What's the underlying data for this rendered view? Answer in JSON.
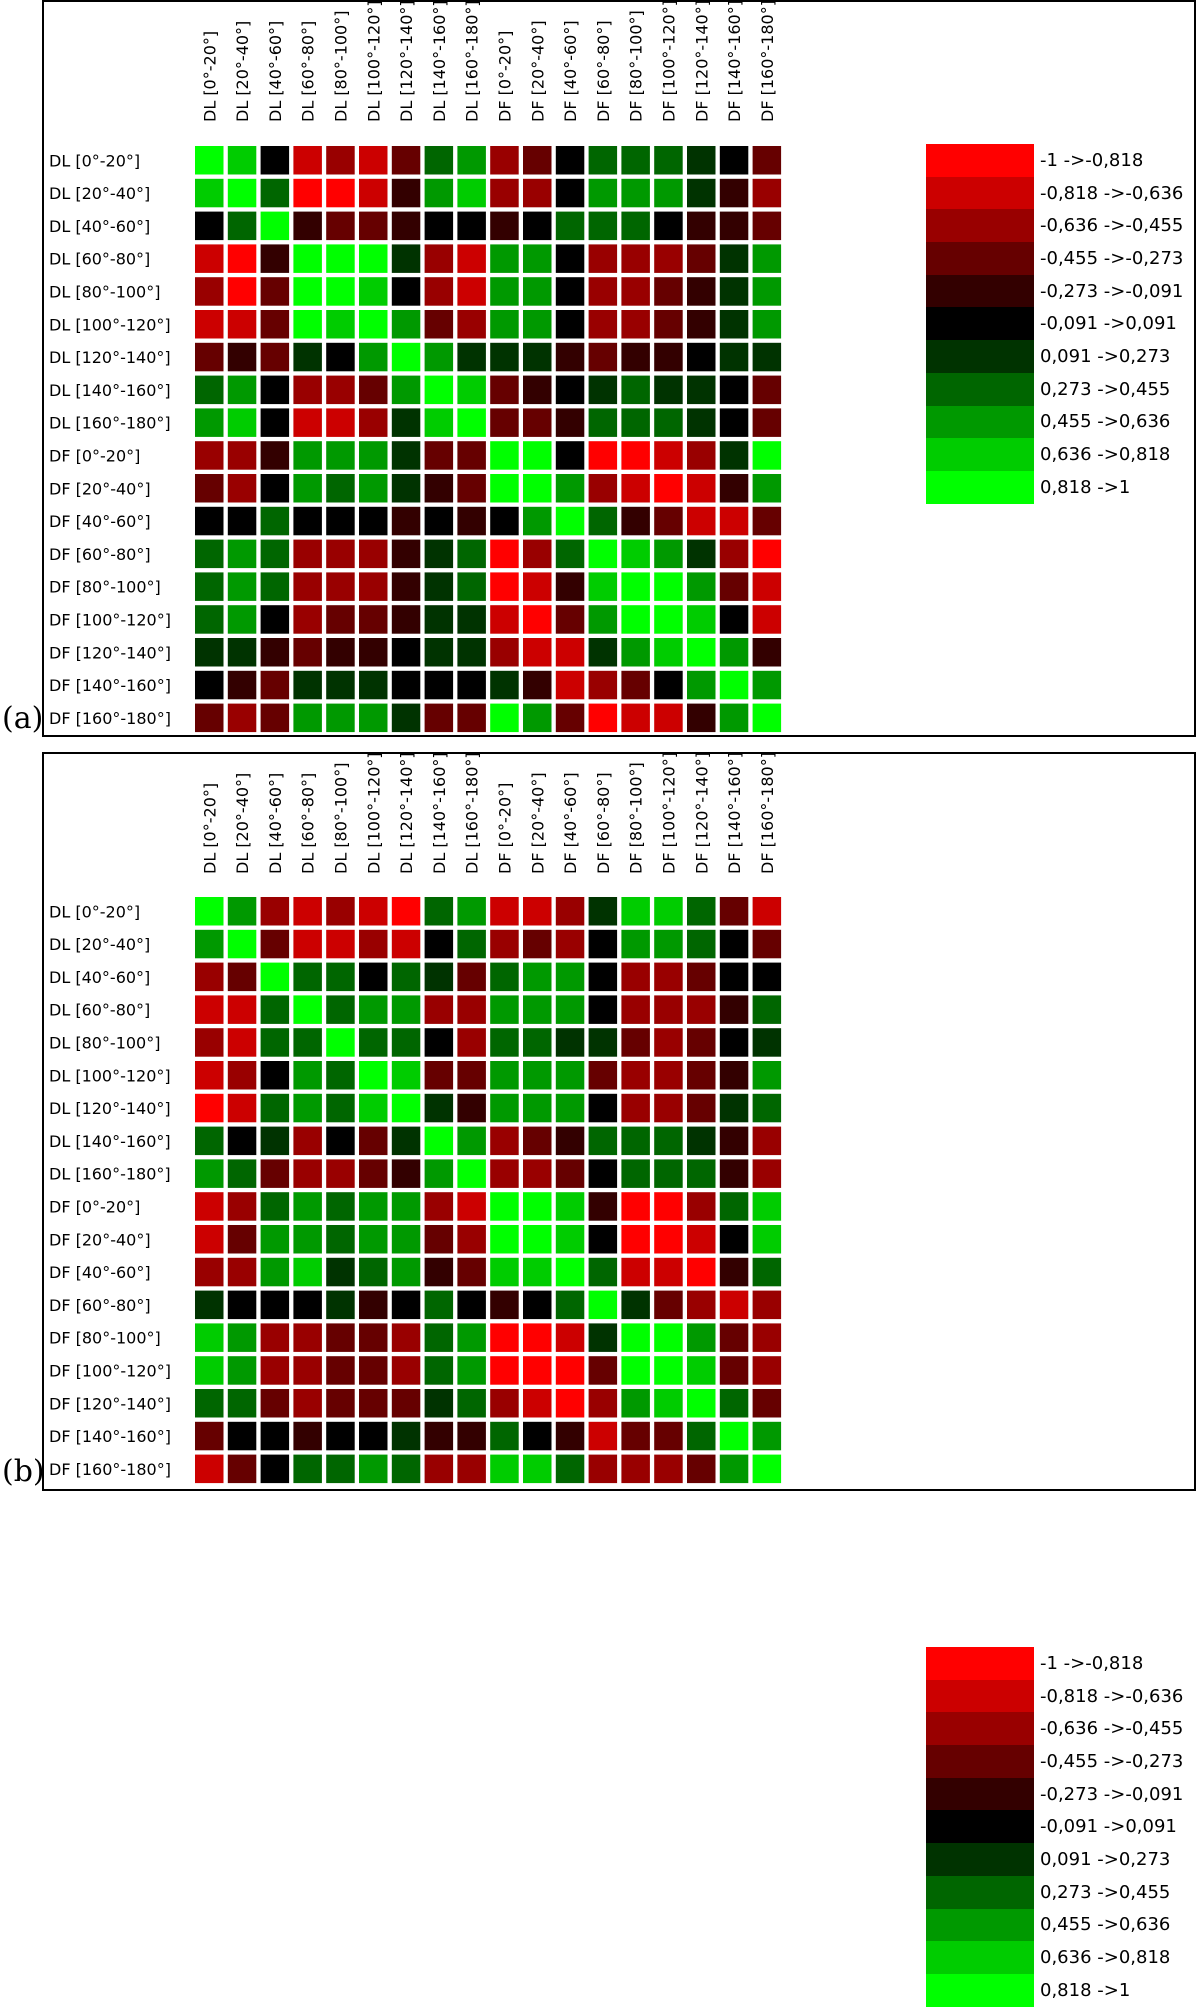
{
  "panels": [
    {
      "letter": "(a)"
    },
    {
      "letter": "(b)"
    }
  ],
  "legend": {
    "colors": [
      "#ff0000",
      "#cc0000",
      "#990000",
      "#660000",
      "#330000",
      "#000000",
      "#003300",
      "#006600",
      "#009900",
      "#00cc00",
      "#00ff00"
    ],
    "labels": [
      "-1 ->-0,818",
      "-0,818 ->-0,636",
      "-0,636 ->-0,455",
      "-0,455 ->-0,273",
      "-0,273 ->-0,091",
      "-0,091 ->0,091",
      "0,091 ->0,273",
      "0,273 ->0,455",
      "0,455 ->0,636",
      "0,636 ->0,818",
      "0,818 ->1"
    ]
  },
  "chart_data": [
    {
      "type": "heatmap",
      "title": "(a)",
      "x_labels": [
        "DL [0°-20°]",
        "DL [20°-40°]",
        "DL [40°-60°]",
        "DL [60°-80°]",
        "DL [80°-100°]",
        "DL [100°-120°]",
        "DL [120°-140°]",
        "DL [140°-160°]",
        "DL [160°-180°]",
        "DF [0°-20°]",
        "DF [20°-40°]",
        "DF [40°-60°]",
        "DF [60°-80°]",
        "DF [80°-100°]",
        "DF [100°-120°]",
        "DF [120°-140°]",
        "DF [140°-160°]",
        "DF [160°-180°]"
      ],
      "y_labels": [
        "DL [0°-20°]",
        "DL [20°-40°]",
        "DL [40°-60°]",
        "DL [60°-80°]",
        "DL [80°-100°]",
        "DL [100°-120°]",
        "DL [120°-140°]",
        "DL [140°-160°]",
        "DL [160°-180°]",
        "DF [0°-20°]",
        "DF [20°-40°]",
        "DF [40°-60°]",
        "DF [60°-80°]",
        "DF [80°-100°]",
        "DF [100°-120°]",
        "DF [120°-140°]",
        "DF [140°-160°]",
        "DF [160°-180°]"
      ],
      "value_range": [
        -1,
        1
      ],
      "bins": 11,
      "values": [
        [
          0.9,
          0.7,
          0,
          -0.7,
          -0.6,
          -0.7,
          -0.4,
          0.4,
          0.6,
          -0.6,
          -0.4,
          0,
          0.4,
          0.4,
          0.4,
          0.2,
          0,
          -0.4
        ],
        [
          0.7,
          0.9,
          0.4,
          -0.9,
          -0.9,
          -0.7,
          -0.2,
          0.6,
          0.7,
          -0.6,
          -0.6,
          0,
          0.6,
          0.6,
          0.6,
          0.2,
          -0.2,
          -0.6
        ],
        [
          0,
          0.4,
          0.9,
          -0.2,
          -0.4,
          -0.4,
          -0.2,
          0,
          0,
          -0.2,
          0,
          0.4,
          0.4,
          0.4,
          0,
          -0.2,
          -0.2,
          -0.4
        ],
        [
          -0.7,
          -0.9,
          -0.2,
          0.9,
          0.9,
          0.9,
          0.2,
          -0.6,
          -0.7,
          0.6,
          0.6,
          0,
          -0.6,
          -0.6,
          -0.6,
          -0.4,
          0.2,
          0.6
        ],
        [
          -0.6,
          -0.9,
          -0.4,
          0.9,
          0.9,
          0.7,
          0,
          -0.6,
          -0.7,
          0.6,
          0.6,
          0,
          -0.6,
          -0.6,
          -0.4,
          -0.2,
          0.2,
          0.6
        ],
        [
          -0.7,
          -0.7,
          -0.4,
          0.9,
          0.7,
          0.9,
          0.6,
          -0.4,
          -0.6,
          0.6,
          0.6,
          0,
          -0.6,
          -0.6,
          -0.4,
          -0.2,
          0.2,
          0.6
        ],
        [
          -0.4,
          -0.2,
          -0.4,
          0.2,
          0,
          0.6,
          0.9,
          0.6,
          0.2,
          0.2,
          0.2,
          -0.2,
          -0.4,
          -0.2,
          -0.2,
          0,
          0.2,
          0.2
        ],
        [
          0.4,
          0.6,
          0,
          -0.6,
          -0.6,
          -0.4,
          0.6,
          0.9,
          0.7,
          -0.4,
          -0.2,
          0,
          0.2,
          0.4,
          0.2,
          0.2,
          0,
          -0.4
        ],
        [
          0.6,
          0.7,
          0,
          -0.7,
          -0.7,
          -0.6,
          0.2,
          0.7,
          0.9,
          -0.4,
          -0.4,
          -0.2,
          0.4,
          0.4,
          0.4,
          0.2,
          0,
          -0.4
        ],
        [
          -0.6,
          -0.6,
          -0.2,
          0.6,
          0.6,
          0.6,
          0.2,
          -0.4,
          -0.4,
          0.9,
          0.9,
          0,
          -0.9,
          -0.9,
          -0.7,
          -0.6,
          0.2,
          0.9
        ],
        [
          -0.4,
          -0.6,
          0,
          0.6,
          0.4,
          0.6,
          0.2,
          -0.2,
          -0.4,
          0.9,
          0.9,
          0.6,
          -0.6,
          -0.7,
          -0.9,
          -0.7,
          -0.2,
          0.6
        ],
        [
          0,
          0,
          0.4,
          0,
          0,
          0,
          -0.2,
          0,
          -0.2,
          0,
          0.6,
          0.9,
          0.4,
          -0.2,
          -0.4,
          -0.7,
          -0.7,
          -0.4
        ],
        [
          0.4,
          0.6,
          0.4,
          -0.6,
          -0.6,
          -0.6,
          -0.2,
          0.2,
          0.4,
          -0.9,
          -0.6,
          0.4,
          0.9,
          0.7,
          0.6,
          0.2,
          -0.6,
          -0.9
        ],
        [
          0.4,
          0.6,
          0.4,
          -0.6,
          -0.6,
          -0.6,
          -0.2,
          0.2,
          0.4,
          -0.9,
          -0.7,
          -0.2,
          0.7,
          0.9,
          0.9,
          0.6,
          -0.4,
          -0.7
        ],
        [
          0.4,
          0.6,
          0,
          -0.6,
          -0.4,
          -0.4,
          -0.2,
          0.2,
          0.2,
          -0.7,
          -0.9,
          -0.4,
          0.6,
          0.9,
          0.9,
          0.7,
          0,
          -0.7
        ],
        [
          0.2,
          0.2,
          -0.2,
          -0.4,
          -0.2,
          -0.2,
          0,
          0.2,
          0.2,
          -0.6,
          -0.7,
          -0.7,
          0.2,
          0.6,
          0.7,
          0.9,
          0.6,
          -0.2
        ],
        [
          0,
          -0.2,
          -0.4,
          0.2,
          0.2,
          0.2,
          0,
          0,
          0,
          0.2,
          -0.2,
          -0.7,
          -0.6,
          -0.4,
          0,
          0.6,
          0.9,
          0.6
        ],
        [
          -0.4,
          -0.6,
          -0.4,
          0.6,
          0.6,
          0.6,
          0.2,
          -0.4,
          -0.4,
          0.9,
          0.6,
          -0.4,
          -0.9,
          -0.7,
          -0.7,
          -0.2,
          0.6,
          0.9
        ]
      ]
    },
    {
      "type": "heatmap",
      "title": "(b)",
      "x_labels": [
        "DL [0°-20°]",
        "DL [20°-40°]",
        "DL [40°-60°]",
        "DL [60°-80°]",
        "DL [80°-100°]",
        "DL [100°-120°]",
        "DL [120°-140°]",
        "DL [140°-160°]",
        "DL [160°-180°]",
        "DF [0°-20°]",
        "DF [20°-40°]",
        "DF [40°-60°]",
        "DF [60°-80°]",
        "DF [80°-100°]",
        "DF [100°-120°]",
        "DF [120°-140°]",
        "DF [140°-160°]",
        "DF [160°-180°]"
      ],
      "y_labels": [
        "DL [0°-20°]",
        "DL [20°-40°]",
        "DL [40°-60°]",
        "DL [60°-80°]",
        "DL [80°-100°]",
        "DL [100°-120°]",
        "DL [120°-140°]",
        "DL [140°-160°]",
        "DL [160°-180°]",
        "DF [0°-20°]",
        "DF [20°-40°]",
        "DF [40°-60°]",
        "DF [60°-80°]",
        "DF [80°-100°]",
        "DF [100°-120°]",
        "DF [120°-140°]",
        "DF [140°-160°]",
        "DF [160°-180°]"
      ],
      "value_range": [
        -1,
        1
      ],
      "bins": 11,
      "values": [
        [
          0.9,
          0.6,
          -0.6,
          -0.7,
          -0.6,
          -0.7,
          -0.9,
          0.4,
          0.6,
          -0.7,
          -0.7,
          -0.6,
          0.2,
          0.7,
          0.7,
          0.4,
          -0.4,
          -0.7
        ],
        [
          0.6,
          0.9,
          -0.4,
          -0.7,
          -0.7,
          -0.6,
          -0.7,
          0,
          0.4,
          -0.6,
          -0.4,
          -0.6,
          0,
          0.6,
          0.6,
          0.4,
          0,
          -0.4
        ],
        [
          -0.6,
          -0.4,
          0.9,
          0.4,
          0.4,
          0,
          0.4,
          0.2,
          -0.4,
          0.4,
          0.6,
          0.6,
          0,
          -0.6,
          -0.6,
          -0.4,
          0,
          0
        ],
        [
          -0.7,
          -0.7,
          0.4,
          0.9,
          0.4,
          0.6,
          0.6,
          -0.6,
          -0.6,
          0.6,
          0.6,
          0.6,
          0,
          -0.6,
          -0.6,
          -0.6,
          -0.2,
          0.4
        ],
        [
          -0.6,
          -0.7,
          0.4,
          0.4,
          0.9,
          0.4,
          0.4,
          0,
          -0.6,
          0.4,
          0.4,
          0.2,
          0.2,
          -0.4,
          -0.6,
          -0.4,
          0,
          0.2
        ],
        [
          -0.7,
          -0.6,
          0,
          0.6,
          0.4,
          0.9,
          0.7,
          -0.4,
          -0.4,
          0.6,
          0.6,
          0.6,
          -0.4,
          -0.6,
          -0.6,
          -0.4,
          -0.2,
          0.6
        ],
        [
          -0.9,
          -0.7,
          0.4,
          0.6,
          0.4,
          0.7,
          0.9,
          0.2,
          -0.2,
          0.6,
          0.6,
          0.6,
          0,
          -0.6,
          -0.6,
          -0.4,
          0.2,
          0.4
        ],
        [
          0.4,
          0,
          0.2,
          -0.6,
          0,
          -0.4,
          0.2,
          0.9,
          0.6,
          -0.6,
          -0.4,
          -0.2,
          0.4,
          0.4,
          0.4,
          0.2,
          -0.2,
          -0.6
        ],
        [
          0.6,
          0.4,
          -0.4,
          -0.6,
          -0.6,
          -0.4,
          -0.2,
          0.6,
          0.9,
          -0.6,
          -0.6,
          -0.4,
          0,
          0.4,
          0.4,
          0.4,
          -0.2,
          -0.6
        ],
        [
          -0.7,
          -0.6,
          0.4,
          0.6,
          0.4,
          0.6,
          0.6,
          -0.6,
          -0.7,
          0.9,
          0.9,
          0.7,
          -0.2,
          -0.9,
          -0.9,
          -0.6,
          0.4,
          0.7
        ],
        [
          -0.7,
          -0.4,
          0.6,
          0.6,
          0.4,
          0.6,
          0.6,
          -0.4,
          -0.6,
          0.9,
          0.9,
          0.7,
          0,
          -0.9,
          -0.9,
          -0.7,
          0,
          0.7
        ],
        [
          -0.6,
          -0.6,
          0.6,
          0.7,
          0.2,
          0.4,
          0.6,
          -0.2,
          -0.4,
          0.7,
          0.7,
          0.9,
          0.4,
          -0.7,
          -0.7,
          -0.9,
          -0.2,
          0.4
        ],
        [
          0.2,
          0,
          0,
          0,
          0.2,
          -0.2,
          0,
          0.4,
          0,
          -0.2,
          0,
          0.4,
          0.9,
          0.2,
          -0.4,
          -0.6,
          -0.7,
          -0.6
        ],
        [
          0.7,
          0.6,
          -0.6,
          -0.6,
          -0.4,
          -0.4,
          -0.6,
          0.4,
          0.6,
          -0.9,
          -0.9,
          -0.7,
          0.2,
          0.9,
          0.9,
          0.6,
          -0.4,
          -0.6
        ],
        [
          0.7,
          0.6,
          -0.6,
          -0.6,
          -0.4,
          -0.4,
          -0.6,
          0.4,
          0.6,
          -0.9,
          -0.9,
          -0.9,
          -0.4,
          0.9,
          0.9,
          0.7,
          -0.4,
          -0.6
        ],
        [
          0.4,
          0.4,
          -0.4,
          -0.6,
          -0.4,
          -0.4,
          -0.4,
          0.2,
          0.4,
          -0.6,
          -0.7,
          -0.9,
          -0.6,
          0.6,
          0.7,
          0.9,
          0.4,
          -0.4
        ],
        [
          -0.4,
          0,
          0,
          -0.2,
          0,
          0,
          0.2,
          -0.2,
          -0.2,
          0.4,
          0,
          -0.2,
          -0.7,
          -0.4,
          -0.4,
          0.4,
          0.9,
          0.6
        ],
        [
          -0.7,
          -0.4,
          0,
          0.4,
          0.4,
          0.6,
          0.4,
          -0.6,
          -0.6,
          0.7,
          0.7,
          0.4,
          -0.6,
          -0.6,
          -0.6,
          -0.4,
          0.6,
          0.9
        ]
      ]
    }
  ]
}
